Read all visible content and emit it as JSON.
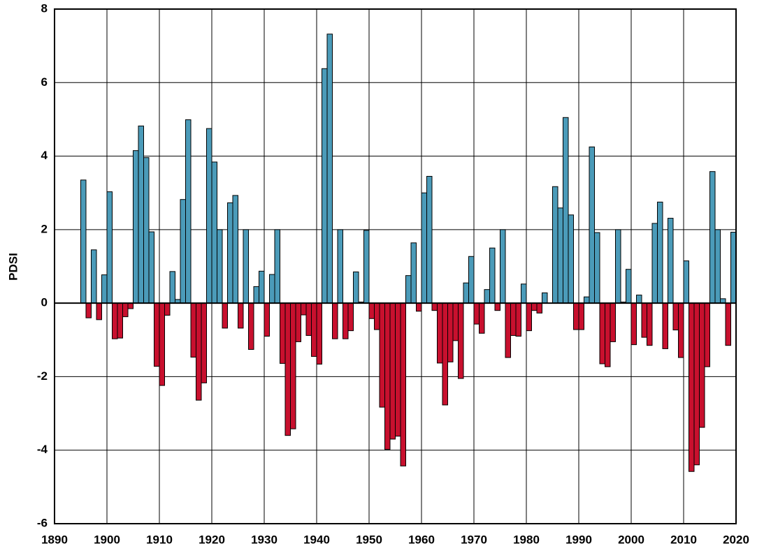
{
  "chart_data": {
    "type": "bar",
    "y_label": "PDSI",
    "x": [
      1895,
      1896,
      1897,
      1898,
      1899,
      1900,
      1901,
      1902,
      1903,
      1904,
      1905,
      1906,
      1907,
      1908,
      1909,
      1910,
      1911,
      1912,
      1913,
      1914,
      1915,
      1916,
      1917,
      1918,
      1919,
      1920,
      1921,
      1922,
      1923,
      1924,
      1925,
      1926,
      1927,
      1928,
      1929,
      1930,
      1931,
      1932,
      1933,
      1934,
      1935,
      1936,
      1937,
      1938,
      1939,
      1940,
      1941,
      1942,
      1943,
      1944,
      1945,
      1946,
      1947,
      1948,
      1949,
      1950,
      1951,
      1952,
      1953,
      1954,
      1955,
      1956,
      1957,
      1958,
      1959,
      1960,
      1961,
      1962,
      1963,
      1964,
      1965,
      1966,
      1967,
      1968,
      1969,
      1970,
      1971,
      1972,
      1973,
      1974,
      1975,
      1976,
      1977,
      1978,
      1979,
      1980,
      1981,
      1982,
      1983,
      1984,
      1985,
      1986,
      1987,
      1988,
      1989,
      1990,
      1991,
      1992,
      1993,
      1994,
      1995,
      1996,
      1997,
      1998,
      1999,
      2000,
      2001,
      2002,
      2003,
      2004,
      2005,
      2006,
      2007,
      2008,
      2009,
      2010,
      2011,
      2012,
      2013,
      2014,
      2015,
      2016,
      2017,
      2018,
      2019
    ],
    "values": [
      3.35,
      -0.4,
      1.45,
      -0.45,
      0.77,
      3.03,
      -0.97,
      -0.95,
      -0.37,
      -0.15,
      4.15,
      4.82,
      3.96,
      1.94,
      -1.72,
      -2.24,
      -0.33,
      0.86,
      0.1,
      2.82,
      4.99,
      -1.47,
      -2.64,
      -2.17,
      4.75,
      3.84,
      2.0,
      -0.68,
      2.73,
      2.93,
      -0.68,
      2.0,
      -1.26,
      0.45,
      0.87,
      -0.9,
      0.78,
      2.0,
      -1.64,
      -3.6,
      -3.42,
      -1.05,
      -0.32,
      -0.88,
      -1.45,
      -1.66,
      6.38,
      7.32,
      -0.97,
      2.0,
      -0.97,
      -0.75,
      0.85,
      0.03,
      1.98,
      -0.42,
      -0.72,
      -2.83,
      -3.98,
      -3.7,
      -3.62,
      -4.43,
      0.75,
      1.64,
      -0.22,
      3.0,
      3.45,
      -0.2,
      -1.63,
      -2.77,
      -1.6,
      -1.02,
      -2.05,
      0.55,
      1.27,
      -0.57,
      -0.82,
      0.37,
      1.5,
      -0.2,
      2.0,
      -1.48,
      -0.88,
      -0.9,
      0.52,
      -0.75,
      -0.2,
      -0.27,
      0.28,
      0.0,
      3.17,
      2.59,
      5.05,
      2.4,
      -0.72,
      -0.72,
      0.17,
      4.25,
      1.92,
      -1.65,
      -1.73,
      -1.05,
      2.0,
      0.03,
      0.92,
      -1.13,
      0.22,
      -0.93,
      -1.15,
      2.17,
      2.75,
      -1.24,
      2.31,
      -0.73,
      -1.48,
      1.15,
      -4.58,
      -4.4,
      -3.38,
      -1.73,
      3.58,
      2.0,
      0.12,
      -1.15,
      1.93
    ],
    "positive_color": "#4b9bb9",
    "negative_color": "#c8102e",
    "xlim": [
      1890,
      2020
    ],
    "xticks": [
      1890,
      1900,
      1910,
      1920,
      1930,
      1940,
      1950,
      1960,
      1970,
      1980,
      1990,
      2000,
      2010,
      2020
    ],
    "ylim": [
      -6,
      8
    ],
    "yticks": [
      -6,
      -4,
      -2,
      0,
      2,
      4,
      6,
      8
    ],
    "grid": true
  }
}
